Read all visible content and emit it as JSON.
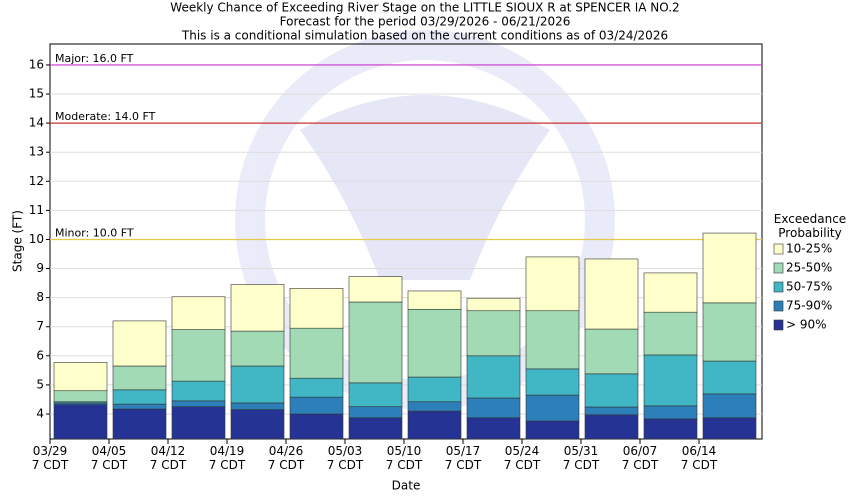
{
  "chart_data": {
    "type": "range-bar",
    "title": "Weekly Chance of Exceeding River Stage on the LITTLE SIOUX R at SPENCER IA NO.2",
    "subtitle": "Forecast for the period 03/29/2026 - 06/21/2026",
    "note": "This is a conditional simulation based on the current conditions as of 03/24/2026",
    "y_label": "Stage (FT)",
    "x_label": "Date",
    "legend_title": "Exceedance Probability",
    "categories": [
      "03/29\n7 CDT",
      "04/05\n7 CDT",
      "04/12\n7 CDT",
      "04/19\n7 CDT",
      "04/26\n7 CDT",
      "05/03\n7 CDT",
      "05/10\n7 CDT",
      "05/17\n7 CDT",
      "05/24\n7 CDT",
      "05/31\n7 CDT",
      "06/07\n7 CDT",
      "06/14\n7 CDT"
    ],
    "series": [
      {
        "name": "10-25%",
        "color": "#ffffcc",
        "values": [
          5.77,
          7.2,
          8.03,
          8.45,
          8.32,
          8.72,
          8.23,
          7.98,
          9.4,
          9.33,
          8.85,
          10.22
        ]
      },
      {
        "name": "25-50%",
        "color": "#a1dab4",
        "values": [
          4.8,
          5.65,
          6.9,
          6.85,
          6.95,
          7.85,
          7.6,
          7.55,
          7.55,
          6.92,
          7.5,
          7.82
        ]
      },
      {
        "name": "50-75%",
        "color": "#41b6c4",
        "values": [
          4.42,
          4.83,
          5.13,
          5.65,
          5.23,
          5.07,
          5.27,
          6.0,
          5.55,
          5.38,
          6.03,
          5.82
        ]
      },
      {
        "name": "75-90%",
        "color": "#2c7fb8",
        "values": [
          4.38,
          4.34,
          4.45,
          4.38,
          4.58,
          4.25,
          4.42,
          4.55,
          4.65,
          4.24,
          4.28,
          4.69
        ]
      },
      {
        "name": "> 90%",
        "color": "#253494",
        "values": [
          4.32,
          4.17,
          4.25,
          4.15,
          4.0,
          3.87,
          4.1,
          3.87,
          3.76,
          3.97,
          3.83,
          3.87
        ]
      }
    ],
    "thresholds": [
      {
        "label": "Major: 16.0 FT",
        "value": 16.0,
        "color": "#cc33cc"
      },
      {
        "label": "Moderate: 14.0 FT",
        "value": 14.0,
        "color": "#cc3333"
      },
      {
        "label": "Minor: 10.0 FT",
        "value": 10.0,
        "color": "#e8c84a"
      }
    ],
    "ylim": [
      3.14,
      16.72
    ],
    "yticks": [
      4,
      5,
      6,
      7,
      8,
      9,
      10,
      11,
      12,
      13,
      14,
      15,
      16
    ]
  }
}
